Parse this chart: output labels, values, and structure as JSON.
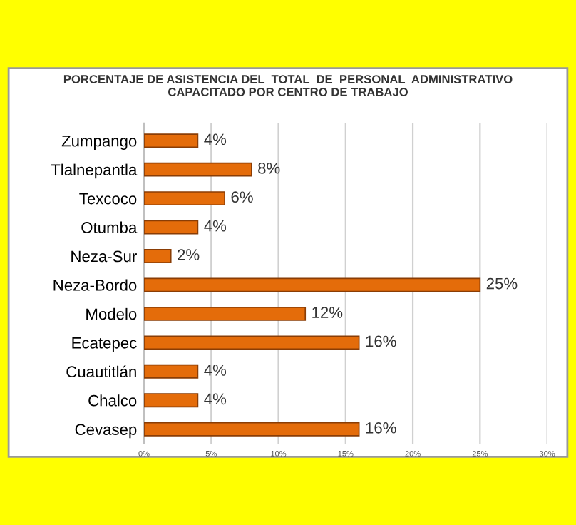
{
  "chart_data": {
    "type": "bar",
    "orientation": "horizontal",
    "title": "PORCENTAJE DE ASISTENCIA DEL  TOTAL  DE  PERSONAL  ADMINISTRATIVO\nCAPACITADO POR CENTRO DE TRABAJO",
    "categories": [
      "Zumpango",
      "Tlalnepantla",
      "Texcoco",
      "Otumba",
      "Neza-Sur",
      "Neza-Bordo",
      "Modelo",
      "Ecatepec",
      "Cuautitlán",
      "Chalco",
      "Cevasep"
    ],
    "values": [
      4,
      8,
      6,
      4,
      2,
      25,
      12,
      16,
      4,
      4,
      16
    ],
    "value_labels": [
      "4%",
      "8%",
      "6%",
      "4%",
      "2%",
      "25%",
      "12%",
      "16%",
      "4%",
      "4%",
      "16%"
    ],
    "color": "#e46c0a",
    "xlim": [
      0,
      30
    ],
    "xticks": [
      {
        "value": 0,
        "label": "0%"
      },
      {
        "value": 5,
        "label": "5%"
      },
      {
        "value": 10,
        "label": "10%"
      },
      {
        "value": 15,
        "label": "15%"
      },
      {
        "value": 20,
        "label": "20%"
      },
      {
        "value": 25,
        "label": "25%"
      },
      {
        "value": 30,
        "label": "30%"
      }
    ],
    "grid": "x"
  }
}
